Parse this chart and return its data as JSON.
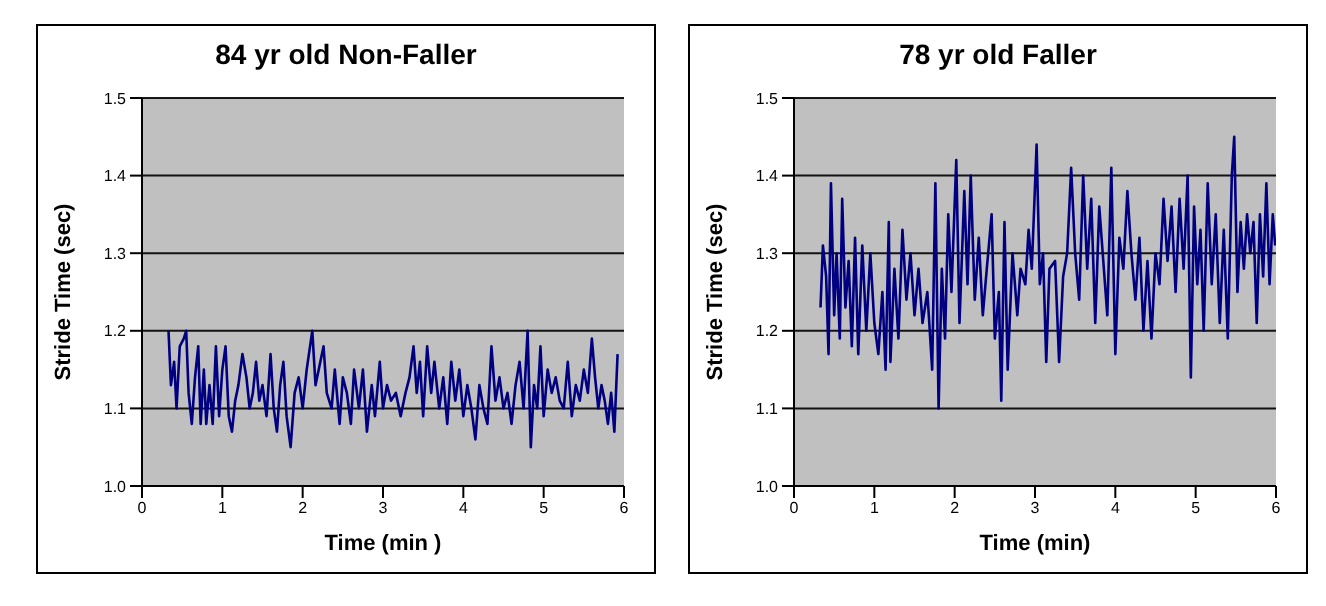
{
  "chart_data": [
    {
      "type": "line",
      "title": "84 yr old Non-Faller",
      "xlabel": "Time (min )",
      "ylabel": "Stride Time (sec)",
      "xlim": [
        0,
        6
      ],
      "xticks": [
        0,
        1,
        2,
        3,
        4,
        5,
        6
      ],
      "ylim": [
        1.0,
        1.5
      ],
      "yticks": [
        {
          "value": 1,
          "label": "1.0"
        },
        1.1,
        1.2,
        1.3,
        1.4,
        1.5
      ],
      "grid": "y",
      "series": [
        {
          "color": "#000080",
          "x": [
            0.33,
            0.36,
            0.4,
            0.43,
            0.47,
            0.52,
            0.55,
            0.58,
            0.62,
            0.66,
            0.7,
            0.73,
            0.77,
            0.8,
            0.84,
            0.88,
            0.92,
            0.96,
            1.0,
            1.04,
            1.08,
            1.12,
            1.16,
            1.2,
            1.25,
            1.3,
            1.34,
            1.38,
            1.42,
            1.46,
            1.5,
            1.55,
            1.6,
            1.64,
            1.68,
            1.72,
            1.76,
            1.8,
            1.85,
            1.9,
            1.95,
            2.0,
            2.05,
            2.12,
            2.16,
            2.22,
            2.26,
            2.3,
            2.36,
            2.4,
            2.46,
            2.5,
            2.55,
            2.6,
            2.64,
            2.7,
            2.75,
            2.8,
            2.86,
            2.9,
            2.96,
            3.0,
            3.05,
            3.1,
            3.16,
            3.22,
            3.28,
            3.33,
            3.38,
            3.42,
            3.46,
            3.5,
            3.55,
            3.6,
            3.64,
            3.7,
            3.75,
            3.8,
            3.85,
            3.9,
            3.95,
            4.0,
            4.05,
            4.1,
            4.15,
            4.2,
            4.25,
            4.3,
            4.35,
            4.4,
            4.45,
            4.5,
            4.55,
            4.6,
            4.65,
            4.7,
            4.75,
            4.8,
            4.84,
            4.88,
            4.92,
            4.96,
            5.0,
            5.05,
            5.1,
            5.15,
            5.2,
            5.25,
            5.3,
            5.35,
            5.4,
            5.45,
            5.5,
            5.55,
            5.6,
            5.64,
            5.68,
            5.72,
            5.76,
            5.8,
            5.84,
            5.88,
            5.92
          ],
          "values": [
            1.2,
            1.13,
            1.16,
            1.1,
            1.18,
            1.19,
            1.2,
            1.12,
            1.08,
            1.14,
            1.18,
            1.08,
            1.15,
            1.08,
            1.13,
            1.08,
            1.18,
            1.09,
            1.15,
            1.18,
            1.09,
            1.07,
            1.11,
            1.13,
            1.17,
            1.14,
            1.1,
            1.12,
            1.16,
            1.11,
            1.13,
            1.09,
            1.17,
            1.1,
            1.07,
            1.13,
            1.16,
            1.09,
            1.05,
            1.12,
            1.14,
            1.1,
            1.15,
            1.2,
            1.13,
            1.16,
            1.18,
            1.12,
            1.1,
            1.15,
            1.08,
            1.14,
            1.12,
            1.08,
            1.15,
            1.1,
            1.15,
            1.07,
            1.13,
            1.09,
            1.16,
            1.1,
            1.13,
            1.11,
            1.12,
            1.09,
            1.12,
            1.14,
            1.18,
            1.12,
            1.16,
            1.09,
            1.18,
            1.12,
            1.16,
            1.1,
            1.14,
            1.08,
            1.16,
            1.11,
            1.15,
            1.09,
            1.13,
            1.1,
            1.06,
            1.13,
            1.1,
            1.08,
            1.18,
            1.11,
            1.14,
            1.1,
            1.12,
            1.08,
            1.13,
            1.16,
            1.1,
            1.2,
            1.05,
            1.13,
            1.1,
            1.18,
            1.09,
            1.15,
            1.12,
            1.14,
            1.11,
            1.1,
            1.16,
            1.09,
            1.13,
            1.11,
            1.15,
            1.12,
            1.19,
            1.14,
            1.1,
            1.13,
            1.11,
            1.08,
            1.12,
            1.07,
            1.17
          ]
        }
      ]
    },
    {
      "type": "line",
      "title": "78 yr old Faller",
      "xlabel": "Time (min)",
      "ylabel": "Stride Time (sec)",
      "xlim": [
        0,
        6
      ],
      "xticks": [
        0,
        1,
        2,
        3,
        4,
        5,
        6
      ],
      "ylim": [
        1.0,
        1.5
      ],
      "yticks": [
        {
          "value": 1,
          "label": "1.0"
        },
        1.1,
        1.2,
        1.3,
        1.4,
        1.5
      ],
      "grid": "y",
      "series": [
        {
          "color": "#000080",
          "x": [
            0.33,
            0.36,
            0.4,
            0.43,
            0.46,
            0.5,
            0.53,
            0.57,
            0.6,
            0.64,
            0.68,
            0.72,
            0.76,
            0.8,
            0.85,
            0.9,
            0.95,
            1.0,
            1.05,
            1.1,
            1.14,
            1.18,
            1.2,
            1.25,
            1.3,
            1.35,
            1.4,
            1.45,
            1.5,
            1.55,
            1.6,
            1.66,
            1.72,
            1.76,
            1.8,
            1.84,
            1.88,
            1.92,
            1.96,
            2.02,
            2.06,
            2.12,
            2.16,
            2.2,
            2.25,
            2.3,
            2.35,
            2.4,
            2.46,
            2.5,
            2.55,
            2.58,
            2.62,
            2.66,
            2.72,
            2.78,
            2.82,
            2.88,
            2.92,
            2.96,
            3.02,
            3.06,
            3.1,
            3.14,
            3.18,
            3.25,
            3.3,
            3.35,
            3.4,
            3.45,
            3.5,
            3.55,
            3.6,
            3.65,
            3.7,
            3.75,
            3.8,
            3.85,
            3.9,
            3.95,
            4.0,
            4.05,
            4.1,
            4.15,
            4.2,
            4.25,
            4.3,
            4.35,
            4.4,
            4.45,
            4.5,
            4.55,
            4.6,
            4.65,
            4.7,
            4.75,
            4.8,
            4.85,
            4.9,
            4.94,
            4.98,
            5.02,
            5.06,
            5.1,
            5.15,
            5.2,
            5.25,
            5.3,
            5.35,
            5.4,
            5.45,
            5.48,
            5.52,
            5.56,
            5.6,
            5.64,
            5.68,
            5.72,
            5.76,
            5.8,
            5.84,
            5.88,
            5.92,
            5.96,
            5.99
          ],
          "values": [
            1.23,
            1.31,
            1.27,
            1.17,
            1.39,
            1.22,
            1.3,
            1.19,
            1.37,
            1.23,
            1.29,
            1.18,
            1.32,
            1.17,
            1.31,
            1.2,
            1.3,
            1.21,
            1.17,
            1.25,
            1.15,
            1.34,
            1.16,
            1.28,
            1.19,
            1.33,
            1.24,
            1.3,
            1.22,
            1.28,
            1.21,
            1.25,
            1.15,
            1.39,
            1.1,
            1.28,
            1.19,
            1.35,
            1.25,
            1.42,
            1.21,
            1.38,
            1.26,
            1.4,
            1.24,
            1.32,
            1.22,
            1.28,
            1.35,
            1.19,
            1.25,
            1.11,
            1.34,
            1.15,
            1.3,
            1.22,
            1.28,
            1.26,
            1.33,
            1.28,
            1.44,
            1.26,
            1.3,
            1.16,
            1.28,
            1.29,
            1.16,
            1.27,
            1.3,
            1.41,
            1.3,
            1.24,
            1.4,
            1.28,
            1.37,
            1.21,
            1.36,
            1.29,
            1.22,
            1.41,
            1.17,
            1.32,
            1.28,
            1.38,
            1.3,
            1.24,
            1.32,
            1.2,
            1.29,
            1.19,
            1.3,
            1.26,
            1.37,
            1.29,
            1.36,
            1.25,
            1.37,
            1.28,
            1.4,
            1.14,
            1.36,
            1.26,
            1.33,
            1.2,
            1.39,
            1.26,
            1.35,
            1.21,
            1.33,
            1.19,
            1.4,
            1.45,
            1.25,
            1.34,
            1.28,
            1.35,
            1.3,
            1.34,
            1.21,
            1.35,
            1.27,
            1.39,
            1.26,
            1.35,
            1.31
          ]
        }
      ]
    }
  ]
}
